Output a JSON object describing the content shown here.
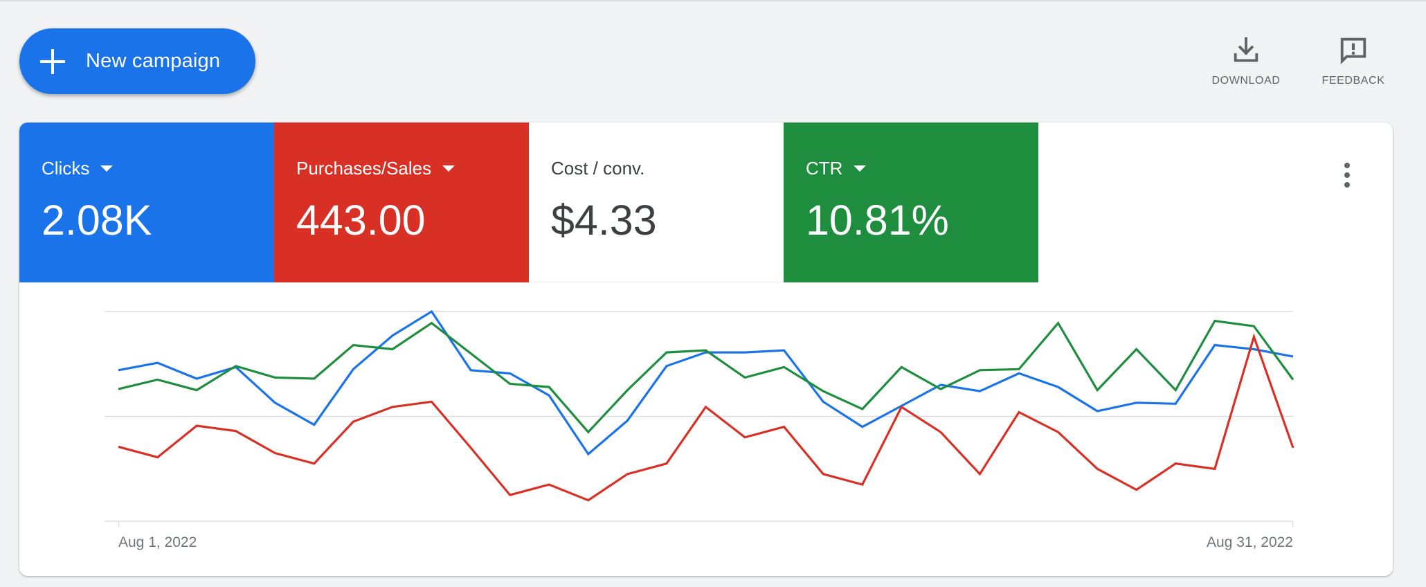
{
  "header": {
    "new_campaign_label": "New campaign",
    "download_label": "DOWNLOAD",
    "feedback_label": "FEEDBACK",
    "icons": {
      "new_campaign": "plus-icon",
      "download": "download-icon",
      "feedback": "feedback-icon",
      "more": "more-vert-icon"
    }
  },
  "metrics": [
    {
      "name": "Clicks",
      "value": "2.08K",
      "dropdown": true,
      "color": "#1a73e8"
    },
    {
      "name": "Purchases/Sales",
      "value": "443.00",
      "dropdown": true,
      "color": "#d93025"
    },
    {
      "name": "Cost / conv.",
      "value": "$4.33",
      "dropdown": false,
      "color": "#ffffff"
    },
    {
      "name": "CTR",
      "value": "10.81%",
      "dropdown": true,
      "color": "#1e8e3e"
    }
  ],
  "chart_data": {
    "type": "line",
    "x_start_label": "Aug 1, 2022",
    "x_end_label": "Aug 31, 2022",
    "x": [
      "Aug 1, 2022",
      "Aug 2, 2022",
      "Aug 3, 2022",
      "Aug 4, 2022",
      "Aug 5, 2022",
      "Aug 6, 2022",
      "Aug 7, 2022",
      "Aug 8, 2022",
      "Aug 9, 2022",
      "Aug 10, 2022",
      "Aug 11, 2022",
      "Aug 12, 2022",
      "Aug 13, 2022",
      "Aug 14, 2022",
      "Aug 15, 2022",
      "Aug 16, 2022",
      "Aug 17, 2022",
      "Aug 18, 2022",
      "Aug 19, 2022",
      "Aug 20, 2022",
      "Aug 21, 2022",
      "Aug 22, 2022",
      "Aug 23, 2022",
      "Aug 24, 2022",
      "Aug 25, 2022",
      "Aug 26, 2022",
      "Aug 27, 2022",
      "Aug 28, 2022",
      "Aug 29, 2022",
      "Aug 30, 2022",
      "Aug 31, 2022"
    ],
    "ylim": [
      0,
      2
    ],
    "grid": true,
    "legend": "none",
    "series": [
      {
        "color": "#1a73e8",
        "values": [
          1.44,
          1.51,
          1.36,
          1.47,
          1.13,
          0.92,
          1.45,
          1.77,
          2.0,
          1.44,
          1.41,
          1.2,
          0.64,
          0.96,
          1.48,
          1.61,
          1.61,
          1.63,
          1.14,
          0.9,
          1.1,
          1.3,
          1.24,
          1.41,
          1.28,
          1.05,
          1.13,
          1.12,
          1.68,
          1.64,
          1.57
        ]
      },
      {
        "color": "#1e8e3e",
        "values": [
          1.26,
          1.35,
          1.25,
          1.48,
          1.37,
          1.36,
          1.68,
          1.64,
          1.89,
          1.6,
          1.31,
          1.28,
          0.85,
          1.25,
          1.61,
          1.63,
          1.37,
          1.47,
          1.24,
          1.07,
          1.47,
          1.26,
          1.44,
          1.45,
          1.89,
          1.25,
          1.64,
          1.25,
          1.91,
          1.86,
          1.35
        ]
      },
      {
        "color": "#d93025",
        "values": [
          0.71,
          0.61,
          0.91,
          0.86,
          0.65,
          0.55,
          0.95,
          1.09,
          1.14,
          0.7,
          0.25,
          0.35,
          0.2,
          0.45,
          0.55,
          1.09,
          0.8,
          0.9,
          0.45,
          0.35,
          1.09,
          0.85,
          0.45,
          1.04,
          0.85,
          0.5,
          0.3,
          0.55,
          0.5,
          1.76,
          0.7
        ]
      }
    ]
  }
}
